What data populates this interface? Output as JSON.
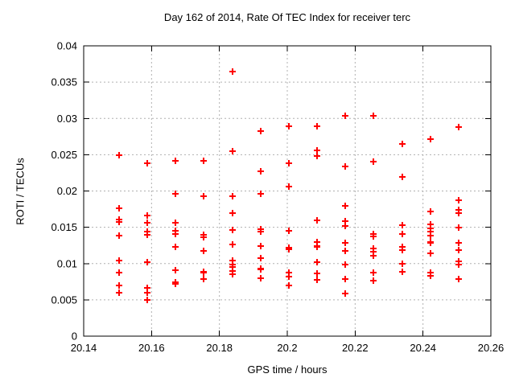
{
  "title": "Day 162 of 2014, Rate Of TEC Index for receiver terc",
  "chart_data": {
    "type": "scatter",
    "title": "Day 162 of 2014, Rate Of TEC Index for receiver terc",
    "xlabel": "GPS time / hours",
    "ylabel": "ROTI / TECUs",
    "xlim": [
      20.14,
      20.26
    ],
    "ylim": [
      0,
      0.04
    ],
    "xticks": [
      20.14,
      20.16,
      20.18,
      20.2,
      20.22,
      20.24,
      20.26
    ],
    "xtick_labels": [
      "20.14",
      "20.16",
      "20.18",
      "20.2",
      "20.22",
      "20.24",
      "20.26"
    ],
    "yticks": [
      0,
      0.005,
      0.01,
      0.015,
      0.02,
      0.025,
      0.03,
      0.035,
      0.04
    ],
    "ytick_labels": [
      "0",
      "0.005",
      "0.01",
      "0.015",
      "0.02",
      "0.025",
      "0.03",
      "0.035",
      "0.04"
    ],
    "grid": true,
    "legend": false,
    "grid_color": "#b0b0b0",
    "frame_color": "#000000",
    "marker": {
      "shape": "plus",
      "color": "#ff0000",
      "size": 9,
      "stroke_width": 2
    },
    "series": [
      {
        "name": "ROTI",
        "points": [
          [
            20.1504,
            0.0249
          ],
          [
            20.1504,
            0.0176
          ],
          [
            20.1504,
            0.0161
          ],
          [
            20.1504,
            0.0157
          ],
          [
            20.1504,
            0.0139
          ],
          [
            20.1504,
            0.0104
          ],
          [
            20.1504,
            0.0088
          ],
          [
            20.1504,
            0.007
          ],
          [
            20.1504,
            0.006
          ],
          [
            20.1588,
            0.0238
          ],
          [
            20.1588,
            0.0166
          ],
          [
            20.1588,
            0.0156
          ],
          [
            20.1588,
            0.0144
          ],
          [
            20.1588,
            0.014
          ],
          [
            20.1588,
            0.0102
          ],
          [
            20.1588,
            0.0066
          ],
          [
            20.1588,
            0.006
          ],
          [
            20.1588,
            0.005
          ],
          [
            20.1671,
            0.0241
          ],
          [
            20.1671,
            0.0196
          ],
          [
            20.1671,
            0.0156
          ],
          [
            20.1671,
            0.0145
          ],
          [
            20.1671,
            0.0141
          ],
          [
            20.1671,
            0.0123
          ],
          [
            20.1671,
            0.0091
          ],
          [
            20.1671,
            0.0074
          ],
          [
            20.1671,
            0.0072
          ],
          [
            20.1754,
            0.0241
          ],
          [
            20.1754,
            0.0193
          ],
          [
            20.1754,
            0.014
          ],
          [
            20.1754,
            0.0136
          ],
          [
            20.1754,
            0.0117
          ],
          [
            20.1754,
            0.0089
          ],
          [
            20.1754,
            0.0087
          ],
          [
            20.1754,
            0.0079
          ],
          [
            20.1838,
            0.0365
          ],
          [
            20.1838,
            0.0255
          ],
          [
            20.1838,
            0.0193
          ],
          [
            20.1838,
            0.017
          ],
          [
            20.1838,
            0.0146
          ],
          [
            20.1838,
            0.0126
          ],
          [
            20.1838,
            0.0104
          ],
          [
            20.1838,
            0.0099
          ],
          [
            20.1838,
            0.0095
          ],
          [
            20.1838,
            0.009
          ],
          [
            20.1838,
            0.0085
          ],
          [
            20.1921,
            0.0283
          ],
          [
            20.1921,
            0.0227
          ],
          [
            20.1921,
            0.0196
          ],
          [
            20.1921,
            0.0147
          ],
          [
            20.1921,
            0.0144
          ],
          [
            20.1921,
            0.0124
          ],
          [
            20.1921,
            0.0107
          ],
          [
            20.1921,
            0.0093
          ],
          [
            20.1921,
            0.0092
          ],
          [
            20.1921,
            0.008
          ],
          [
            20.2004,
            0.0289
          ],
          [
            20.2004,
            0.0238
          ],
          [
            20.2004,
            0.0206
          ],
          [
            20.2004,
            0.0145
          ],
          [
            20.2004,
            0.0122
          ],
          [
            20.2004,
            0.012
          ],
          [
            20.2004,
            0.0088
          ],
          [
            20.2004,
            0.0082
          ],
          [
            20.2004,
            0.007
          ],
          [
            20.2088,
            0.0289
          ],
          [
            20.2088,
            0.0256
          ],
          [
            20.2088,
            0.0248
          ],
          [
            20.2088,
            0.016
          ],
          [
            20.2088,
            0.013
          ],
          [
            20.2088,
            0.0124
          ],
          [
            20.2088,
            0.0123
          ],
          [
            20.2088,
            0.0102
          ],
          [
            20.2088,
            0.0086
          ],
          [
            20.2088,
            0.0078
          ],
          [
            20.2171,
            0.0304
          ],
          [
            20.2171,
            0.0234
          ],
          [
            20.2171,
            0.0179
          ],
          [
            20.2171,
            0.0158
          ],
          [
            20.2171,
            0.0152
          ],
          [
            20.2171,
            0.0128
          ],
          [
            20.2171,
            0.0117
          ],
          [
            20.2171,
            0.0099
          ],
          [
            20.2171,
            0.0079
          ],
          [
            20.2171,
            0.0059
          ],
          [
            20.2254,
            0.0304
          ],
          [
            20.2254,
            0.024
          ],
          [
            20.2254,
            0.0141
          ],
          [
            20.2254,
            0.0137
          ],
          [
            20.2254,
            0.0121
          ],
          [
            20.2254,
            0.0116
          ],
          [
            20.2254,
            0.0111
          ],
          [
            20.2254,
            0.0088
          ],
          [
            20.2254,
            0.0076
          ],
          [
            20.2338,
            0.0265
          ],
          [
            20.2338,
            0.0219
          ],
          [
            20.2338,
            0.0153
          ],
          [
            20.2338,
            0.0141
          ],
          [
            20.2338,
            0.0123
          ],
          [
            20.2338,
            0.0119
          ],
          [
            20.2338,
            0.01
          ],
          [
            20.2338,
            0.0089
          ],
          [
            20.2421,
            0.0271
          ],
          [
            20.2421,
            0.0172
          ],
          [
            20.2421,
            0.0154
          ],
          [
            20.2421,
            0.0149
          ],
          [
            20.2421,
            0.0144
          ],
          [
            20.2421,
            0.0139
          ],
          [
            20.2421,
            0.013
          ],
          [
            20.2421,
            0.0128
          ],
          [
            20.2421,
            0.0114
          ],
          [
            20.2421,
            0.0088
          ],
          [
            20.2421,
            0.0083
          ],
          [
            20.2504,
            0.0288
          ],
          [
            20.2504,
            0.0187
          ],
          [
            20.2504,
            0.0174
          ],
          [
            20.2504,
            0.017
          ],
          [
            20.2504,
            0.015
          ],
          [
            20.2504,
            0.0128
          ],
          [
            20.2504,
            0.0119
          ],
          [
            20.2504,
            0.0103
          ],
          [
            20.2504,
            0.0099
          ],
          [
            20.2504,
            0.0079
          ]
        ]
      }
    ]
  }
}
